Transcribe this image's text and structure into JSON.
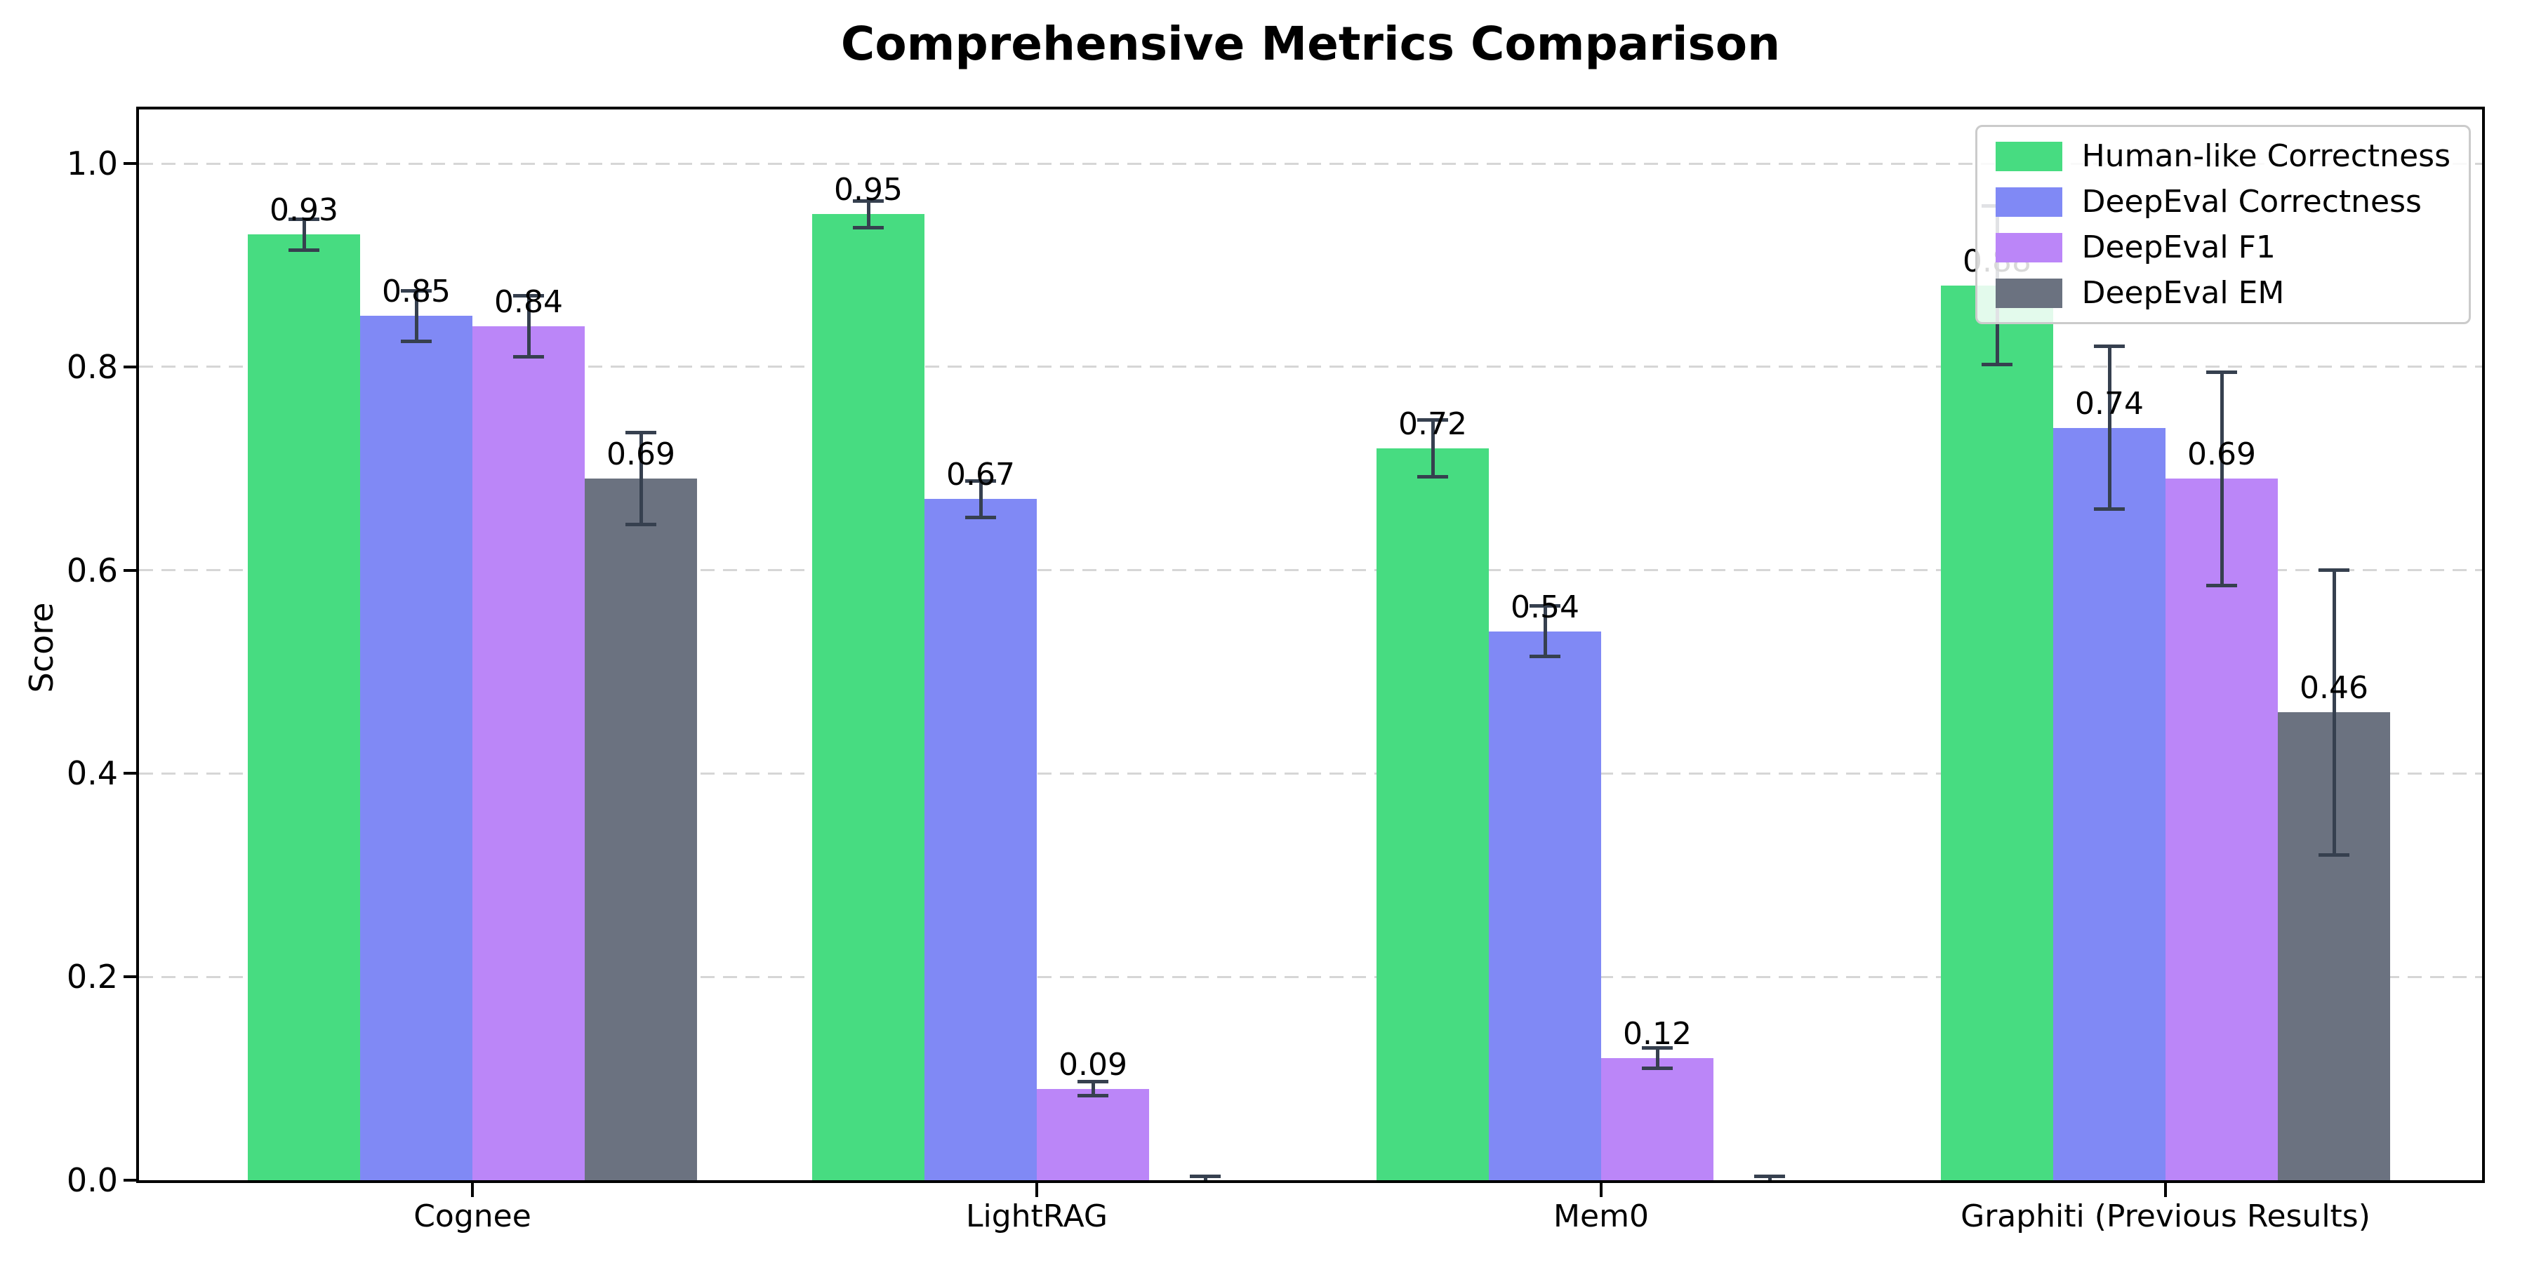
{
  "chart_data": {
    "type": "bar",
    "title": "Comprehensive Metrics Comparison",
    "xlabel": "",
    "ylabel": "Score",
    "ylim": [
      0,
      1.05
    ],
    "yticks": [
      {
        "value": 0.0,
        "label": "0.0"
      },
      {
        "value": 0.2,
        "label": "0.2"
      },
      {
        "value": 0.4,
        "label": "0.4"
      },
      {
        "value": 0.6,
        "label": "0.6"
      },
      {
        "value": 0.8,
        "label": "0.8"
      },
      {
        "value": 1.0,
        "label": "1.0"
      }
    ],
    "grid": "horizontal dashed gridlines at y ticks",
    "legend_position": "upper right",
    "categories": [
      "Cognee",
      "LightRAG",
      "Mem0",
      "Graphiti (Previous Results)"
    ],
    "series": [
      {
        "name": "Human-like Correctness",
        "color": "#47dc81",
        "values": [
          0.93,
          0.95,
          0.72,
          0.88
        ],
        "errors": [
          0.015,
          0.013,
          0.028,
          0.078
        ],
        "bar_labels": [
          "0.93",
          "0.95",
          "0.72",
          "0.88"
        ]
      },
      {
        "name": "DeepEval Correctness",
        "color": "#8089f5",
        "values": [
          0.85,
          0.67,
          0.54,
          0.74
        ],
        "errors": [
          0.025,
          0.018,
          0.025,
          0.08
        ],
        "bar_labels": [
          "0.85",
          "0.67",
          "0.54",
          "0.74"
        ]
      },
      {
        "name": "DeepEval F1",
        "color": "#bb86f8",
        "values": [
          0.84,
          0.09,
          0.12,
          0.69
        ],
        "errors": [
          0.03,
          0.007,
          0.01,
          0.105
        ],
        "bar_labels": [
          "0.84",
          "0.09",
          "0.12",
          "0.69"
        ]
      },
      {
        "name": "DeepEval EM",
        "color": "#6b7280",
        "values": [
          0.69,
          0.0,
          0.0,
          0.46
        ],
        "errors": [
          0.045,
          0.004,
          0.004,
          0.14
        ],
        "bar_labels": [
          "0.69",
          "",
          "",
          "0.46"
        ]
      }
    ],
    "style": {
      "error_bar_color": "#36404f",
      "grid_color": "#d6d6d6",
      "axis_color": "#000000",
      "legend_border_color": "#cbcbcb",
      "background": "#ffffff"
    }
  }
}
